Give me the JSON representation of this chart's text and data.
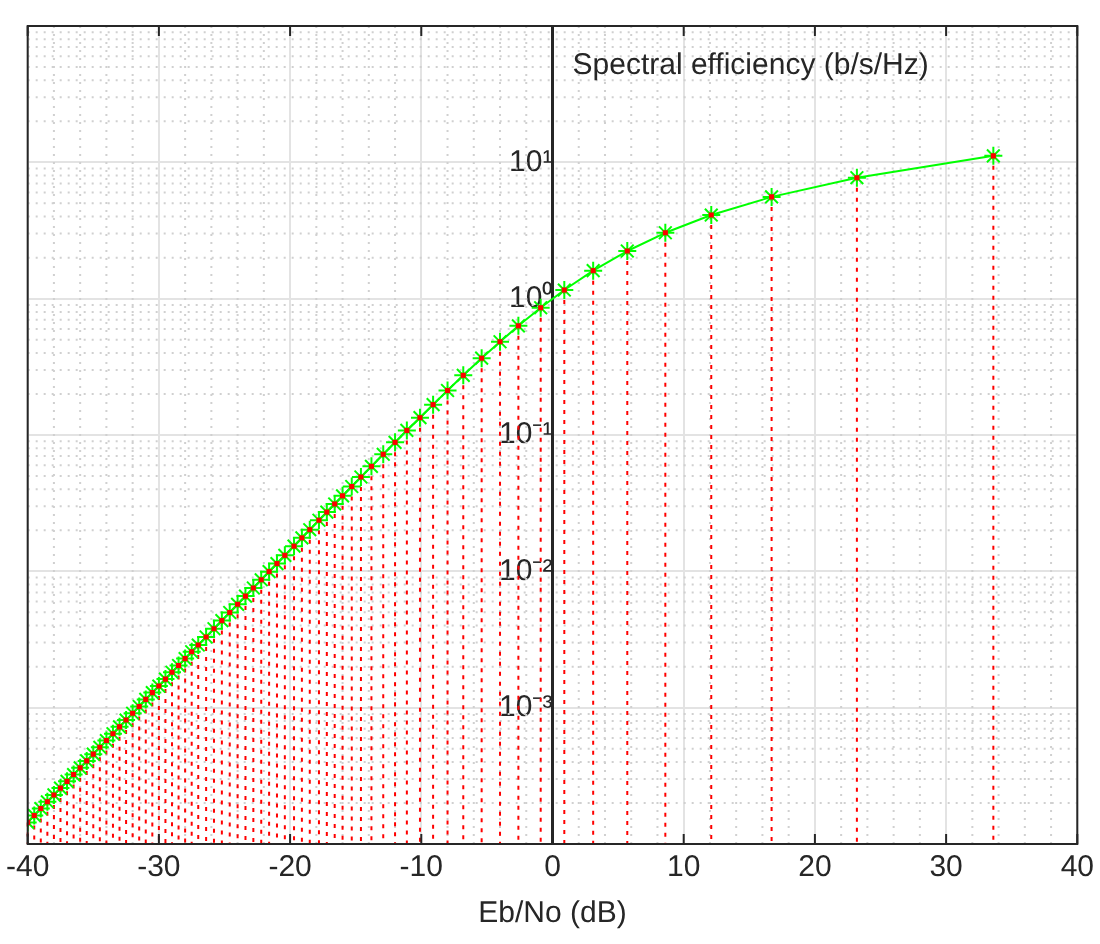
{
  "chart_data": {
    "type": "line",
    "ylabel": "Spectral efficiency (b/s/Hz)",
    "xlabel": "Eb/No (dB)",
    "x": [
      -40.0,
      -39.5,
      -39.0,
      -38.5,
      -38.0,
      -37.5,
      -37.0,
      -36.5,
      -36.0,
      -35.5,
      -35.0,
      -34.5,
      -34.0,
      -33.5,
      -33.0,
      -32.5,
      -32.0,
      -31.5,
      -31.0,
      -30.5,
      -30.0,
      -29.5,
      -29.0,
      -28.5,
      -28.0,
      -27.5,
      -27.0,
      -26.4,
      -25.8,
      -25.2,
      -24.6,
      -24.0,
      -23.4,
      -22.8,
      -22.2,
      -21.6,
      -21.0,
      -20.4,
      -19.7,
      -19.1,
      -18.5,
      -17.8,
      -17.2,
      -16.6,
      -16.0,
      -15.3,
      -14.6,
      -13.8,
      -12.9,
      -12.0,
      -11.1,
      -10.1,
      -9.1,
      -8.0,
      -6.8,
      -5.4,
      -4.0,
      -2.6,
      -0.9,
      0.9,
      3.1,
      5.7,
      8.6,
      12.1,
      16.7,
      23.2,
      33.6
    ],
    "series": [
      {
        "color": "#00ff00",
        "marker": "cross",
        "line_style": "solid",
        "values": [
          0.000144,
          0.000162,
          0.000182,
          0.000204,
          0.000229,
          0.000257,
          0.000288,
          0.000323,
          0.000362,
          0.000407,
          0.000456,
          0.000512,
          0.000574,
          0.000644,
          0.000723,
          0.000811,
          0.00091,
          0.00102,
          0.00115,
          0.00129,
          0.00144,
          0.00162,
          0.00182,
          0.00204,
          0.00229,
          0.00257,
          0.00288,
          0.0033,
          0.00379,
          0.00435,
          0.00499,
          0.00573,
          0.00658,
          0.00755,
          0.00867,
          0.00995,
          0.0114,
          0.0131,
          0.0153,
          0.0176,
          0.0202,
          0.0237,
          0.0272,
          0.0312,
          0.0358,
          0.0419,
          0.0492,
          0.0589,
          0.0722,
          0.0883,
          0.108,
          0.134,
          0.167,
          0.212,
          0.274,
          0.366,
          0.483,
          0.632,
          0.858,
          1.157,
          1.605,
          2.237,
          3.043,
          4.106,
          5.578,
          7.713,
          11.16
        ]
      },
      {
        "type": "lollipop",
        "color": "#ff0000",
        "marker": "square",
        "line_style": "dotted",
        "values": [
          0.000144,
          0.000162,
          0.000182,
          0.000204,
          0.000229,
          0.000257,
          0.000288,
          0.000323,
          0.000362,
          0.000407,
          0.000456,
          0.000512,
          0.000574,
          0.000644,
          0.000723,
          0.000811,
          0.00091,
          0.00102,
          0.00115,
          0.00129,
          0.00144,
          0.00162,
          0.00182,
          0.00204,
          0.00229,
          0.00257,
          0.00288,
          0.0033,
          0.00379,
          0.00435,
          0.00499,
          0.00573,
          0.00658,
          0.00755,
          0.00867,
          0.00995,
          0.0114,
          0.0131,
          0.0153,
          0.0176,
          0.0202,
          0.0237,
          0.0272,
          0.0312,
          0.0358,
          0.0419,
          0.0492,
          0.0589,
          0.0722,
          0.0883,
          0.108,
          0.134,
          0.167,
          0.212,
          0.274,
          0.366,
          0.483,
          0.632,
          0.858,
          1.157,
          1.605,
          2.237,
          3.043,
          4.106,
          5.578,
          7.713,
          11.16
        ]
      }
    ],
    "xlim": [
      -40,
      40
    ],
    "xticks": [
      -40,
      -30,
      -20,
      -10,
      0,
      10,
      20,
      30,
      40
    ],
    "ylim": [
      0.0001,
      100
    ],
    "yticks": [
      {
        "value": 0.001,
        "label": "10⁻³"
      },
      {
        "value": 0.01,
        "label": "10⁻²"
      },
      {
        "value": 0.1,
        "label": "10⁻¹"
      },
      {
        "value": 1,
        "label": "10⁰"
      },
      {
        "value": 10,
        "label": "10¹"
      }
    ],
    "log": "y",
    "grid": true,
    "legend": false
  }
}
